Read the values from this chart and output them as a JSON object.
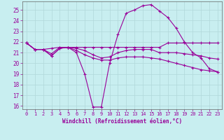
{
  "xlabel": "Windchill (Refroidissement éolien,°C)",
  "bg_color": "#c8eef0",
  "grid_color": "#b0d8da",
  "line_color": "#990099",
  "yticks": [
    16,
    17,
    18,
    19,
    20,
    21,
    22,
    23,
    24,
    25
  ],
  "xticks": [
    0,
    1,
    2,
    3,
    4,
    5,
    6,
    7,
    8,
    9,
    10,
    11,
    12,
    13,
    14,
    15,
    16,
    17,
    18,
    19,
    20,
    21,
    22,
    23
  ],
  "series": [
    {
      "x": [
        0,
        1,
        2,
        3,
        4,
        5,
        6,
        7,
        8,
        9,
        10,
        11,
        12,
        13,
        14,
        15,
        16,
        17,
        18,
        19,
        20,
        21,
        22,
        23
      ],
      "y": [
        21.9,
        21.3,
        21.3,
        20.7,
        21.4,
        21.5,
        21.0,
        19.0,
        15.9,
        15.9,
        20.0,
        22.7,
        24.7,
        25.0,
        25.4,
        25.5,
        24.9,
        24.3,
        23.3,
        22.0,
        21.0,
        20.5,
        19.5,
        19.2
      ]
    },
    {
      "x": [
        0,
        1,
        2,
        3,
        4,
        5,
        6,
        7,
        8,
        9,
        10,
        11,
        12,
        13,
        14,
        15,
        16,
        17,
        18,
        19,
        20,
        21,
        22,
        23
      ],
      "y": [
        21.9,
        21.3,
        21.3,
        21.4,
        21.5,
        21.5,
        21.5,
        21.5,
        21.5,
        21.5,
        21.5,
        21.5,
        21.5,
        21.5,
        21.5,
        21.5,
        21.5,
        21.9,
        21.9,
        21.9,
        21.9,
        21.9,
        21.9,
        21.9
      ]
    },
    {
      "x": [
        0,
        1,
        2,
        3,
        4,
        5,
        6,
        7,
        8,
        9,
        10,
        11,
        12,
        13,
        14,
        15,
        16,
        17,
        18,
        19,
        20,
        21,
        22,
        23
      ],
      "y": [
        21.9,
        21.3,
        21.3,
        20.7,
        21.4,
        21.5,
        21.2,
        20.8,
        20.5,
        20.3,
        20.3,
        20.5,
        20.6,
        20.6,
        20.6,
        20.5,
        20.4,
        20.2,
        20.0,
        19.8,
        19.6,
        19.4,
        19.3,
        19.2
      ]
    },
    {
      "x": [
        0,
        1,
        2,
        3,
        4,
        5,
        6,
        7,
        8,
        9,
        10,
        11,
        12,
        13,
        14,
        15,
        16,
        17,
        18,
        19,
        20,
        21,
        22,
        23
      ],
      "y": [
        21.9,
        21.3,
        21.3,
        20.9,
        21.5,
        21.5,
        21.4,
        21.2,
        20.8,
        20.5,
        20.6,
        21.0,
        21.2,
        21.3,
        21.3,
        21.3,
        21.0,
        21.0,
        21.0,
        20.9,
        20.8,
        20.7,
        20.5,
        20.4
      ]
    }
  ]
}
